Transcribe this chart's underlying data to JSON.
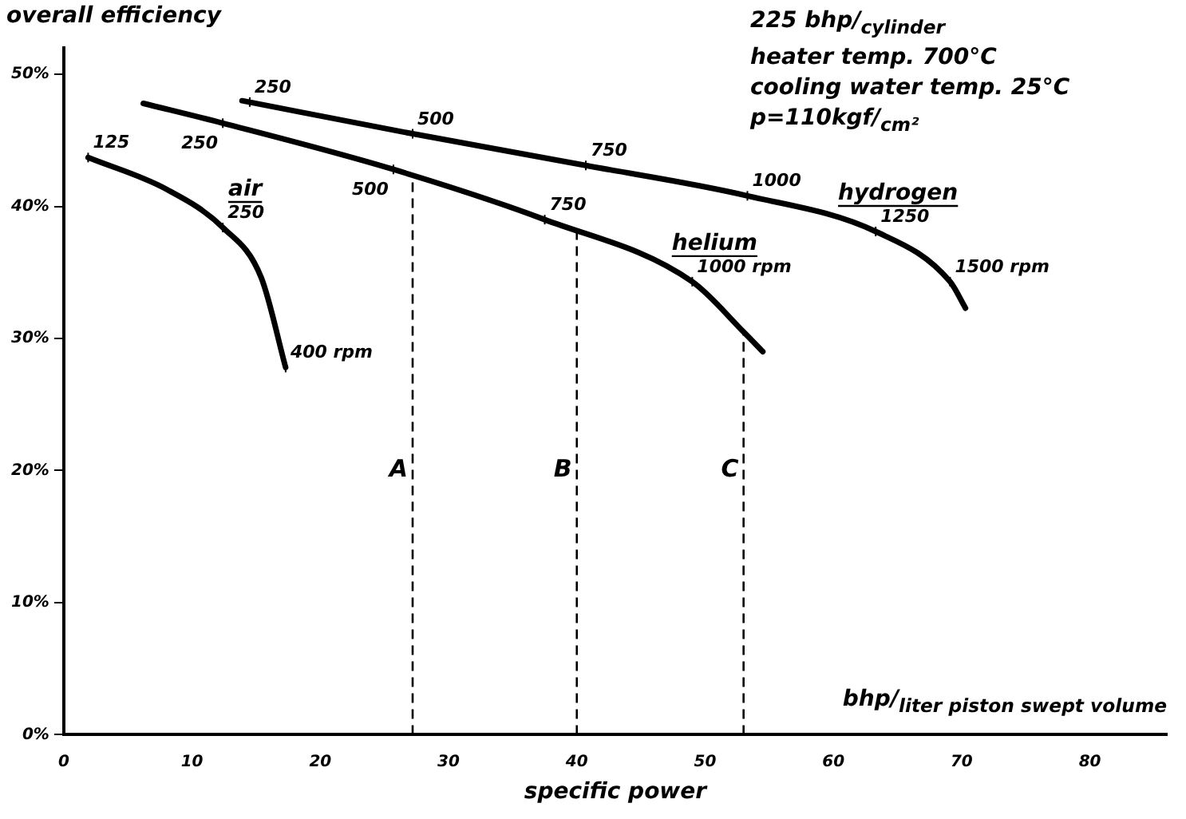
{
  "chart_data": {
    "type": "line",
    "ylabel": "overall efficiency",
    "xlabel": "specific power",
    "xlim": [
      0,
      86
    ],
    "xticks": [
      0,
      10,
      20,
      30,
      40,
      50,
      60,
      70,
      80
    ],
    "ylim": [
      0,
      52
    ],
    "yticks": [
      {
        "value": 0,
        "label": "0%"
      },
      {
        "value": 10,
        "label": "10%"
      },
      {
        "value": 20,
        "label": "20%"
      },
      {
        "value": 30,
        "label": "30%"
      },
      {
        "value": 40,
        "label": "40%"
      },
      {
        "value": 50,
        "label": "50%"
      }
    ],
    "grid": false,
    "legend": false,
    "marker": "none",
    "line_style": "solid",
    "series": [
      {
        "name": "air",
        "color": "#000000",
        "x": [
          1.9,
          8,
          12.4,
          15.4,
          17.3
        ],
        "values": [
          43.7,
          41.3,
          38.4,
          34.6,
          27.8
        ]
      },
      {
        "name": "helium",
        "color": "#000000",
        "x": [
          6.2,
          12.4,
          25.7,
          37.5,
          49,
          53,
          54.5
        ],
        "values": [
          47.8,
          46.3,
          42.8,
          39.0,
          34.3,
          30.5,
          29
        ]
      },
      {
        "name": "hydrogen",
        "color": "#000000",
        "x": [
          13.9,
          27.2,
          40.7,
          53.3,
          63.3,
          69.1,
          70.3
        ],
        "values": [
          48.0,
          45.5,
          43.1,
          40.8,
          38.1,
          34.3,
          32.3
        ]
      }
    ],
    "ref_lines": [
      {
        "axis": "x",
        "value": 27.2,
        "label": "A",
        "line_style": "dashed"
      },
      {
        "axis": "x",
        "value": 40,
        "label": "B",
        "line_style": "dashed"
      },
      {
        "axis": "x",
        "value": 53,
        "label": "C",
        "line_style": "dashed"
      }
    ],
    "annotations": [
      "225 bhp/$_{cylinder}$",
      "heater temp. 700°C",
      "cooling water temp. 25°C",
      "p=110kgf/$_{cm²}$",
      "bhp/$_{liter piston swept volume}$",
      {
        "text": "125",
        "x": 1.9,
        "y": 43.7
      },
      {
        "text": "250",
        "x": 12.4,
        "y": 38.4
      },
      {
        "text": "400 rpm",
        "x": 17.3,
        "y": 27.8
      },
      {
        "text": "250",
        "x": 12.4,
        "y": 46.3
      },
      {
        "text": "500",
        "x": 25.7,
        "y": 42.8
      },
      {
        "text": "750",
        "x": 37.5,
        "y": 39.0
      },
      {
        "text": "1000 rpm",
        "x": 49,
        "y": 34.3
      },
      {
        "text": "250",
        "x": 14.5,
        "y": 47.9
      },
      {
        "text": "500",
        "x": 27.2,
        "y": 45.5
      },
      {
        "text": "750",
        "x": 40.7,
        "y": 43.1
      },
      {
        "text": "1000",
        "x": 53.3,
        "y": 40.8
      },
      {
        "text": "1250",
        "x": 63.3,
        "y": 38.1
      },
      {
        "text": "1500 rpm",
        "x": 69.1,
        "y": 34.3
      }
    ]
  }
}
